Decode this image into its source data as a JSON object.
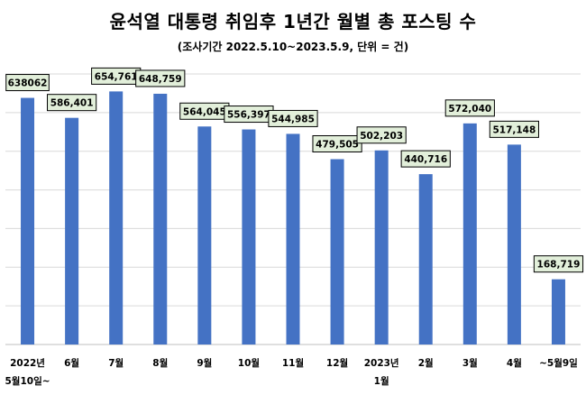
{
  "chart_data": {
    "type": "bar",
    "title": "윤석열 대통령 취임후 1년간 월별 총 포스팅 수",
    "subtitle": "(조사기간 2022.5.10~2023.5.9, 단위 = 건)",
    "categories": [
      [
        "2022년",
        "5월10일~"
      ],
      [
        "6월"
      ],
      [
        "7월"
      ],
      [
        "8월"
      ],
      [
        "9월"
      ],
      [
        "10월"
      ],
      [
        "11월"
      ],
      [
        "12월"
      ],
      [
        "2023년",
        "1월"
      ],
      [
        "2월"
      ],
      [
        "3월"
      ],
      [
        "4월"
      ],
      [
        "~5월9일"
      ]
    ],
    "values": [
      638062,
      586401,
      654761,
      648759,
      564045,
      556397,
      544985,
      479505,
      502203,
      440716,
      572040,
      517148,
      168719
    ],
    "data_labels": [
      "638062",
      "586,401",
      "654,761",
      "648,759",
      "564,045",
      "556,397",
      "544,985",
      "479,505",
      "502,203",
      "440,716",
      "572,040",
      "517,148",
      "168,719"
    ],
    "ylim": [
      0,
      700000
    ],
    "grid": true,
    "xlabel": "",
    "ylabel": "",
    "colors": {
      "bar": "#4472C4",
      "label_fill": "#E2EFDA",
      "label_border": "#000000",
      "grid": "#D9D9D9"
    }
  }
}
